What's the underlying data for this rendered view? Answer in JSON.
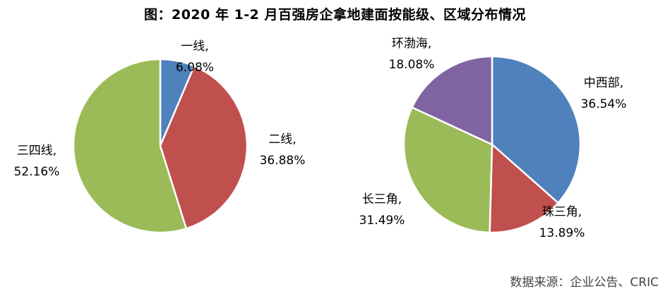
{
  "title": "图：2020 年 1-2 月百强房企拿地建面按能级、区域分布情况",
  "source": "数据来源：企业公告、CRIC",
  "chart_data": [
    {
      "type": "pie",
      "slices": [
        {
          "label": "一线,",
          "value": 6.08,
          "value_label": "6.08%",
          "color": "#4F81BD"
        },
        {
          "label": "二线,",
          "value": 36.88,
          "value_label": "36.88%",
          "color": "#C0504D"
        },
        {
          "label": "三四线,",
          "value": 52.16,
          "value_label": "52.16%",
          "color": "#9BBB59"
        }
      ]
    },
    {
      "type": "pie",
      "slices": [
        {
          "label": "中西部,",
          "value": 36.54,
          "value_label": "36.54%",
          "color": "#4F81BD"
        },
        {
          "label": "珠三角,",
          "value": 13.89,
          "value_label": "13.89%",
          "color": "#C0504D"
        },
        {
          "label": "长三角,",
          "value": 31.49,
          "value_label": "31.49%",
          "color": "#9BBB59"
        },
        {
          "label": "环渤海,",
          "value": 18.08,
          "value_label": "18.08%",
          "color": "#8064A2"
        }
      ]
    }
  ]
}
